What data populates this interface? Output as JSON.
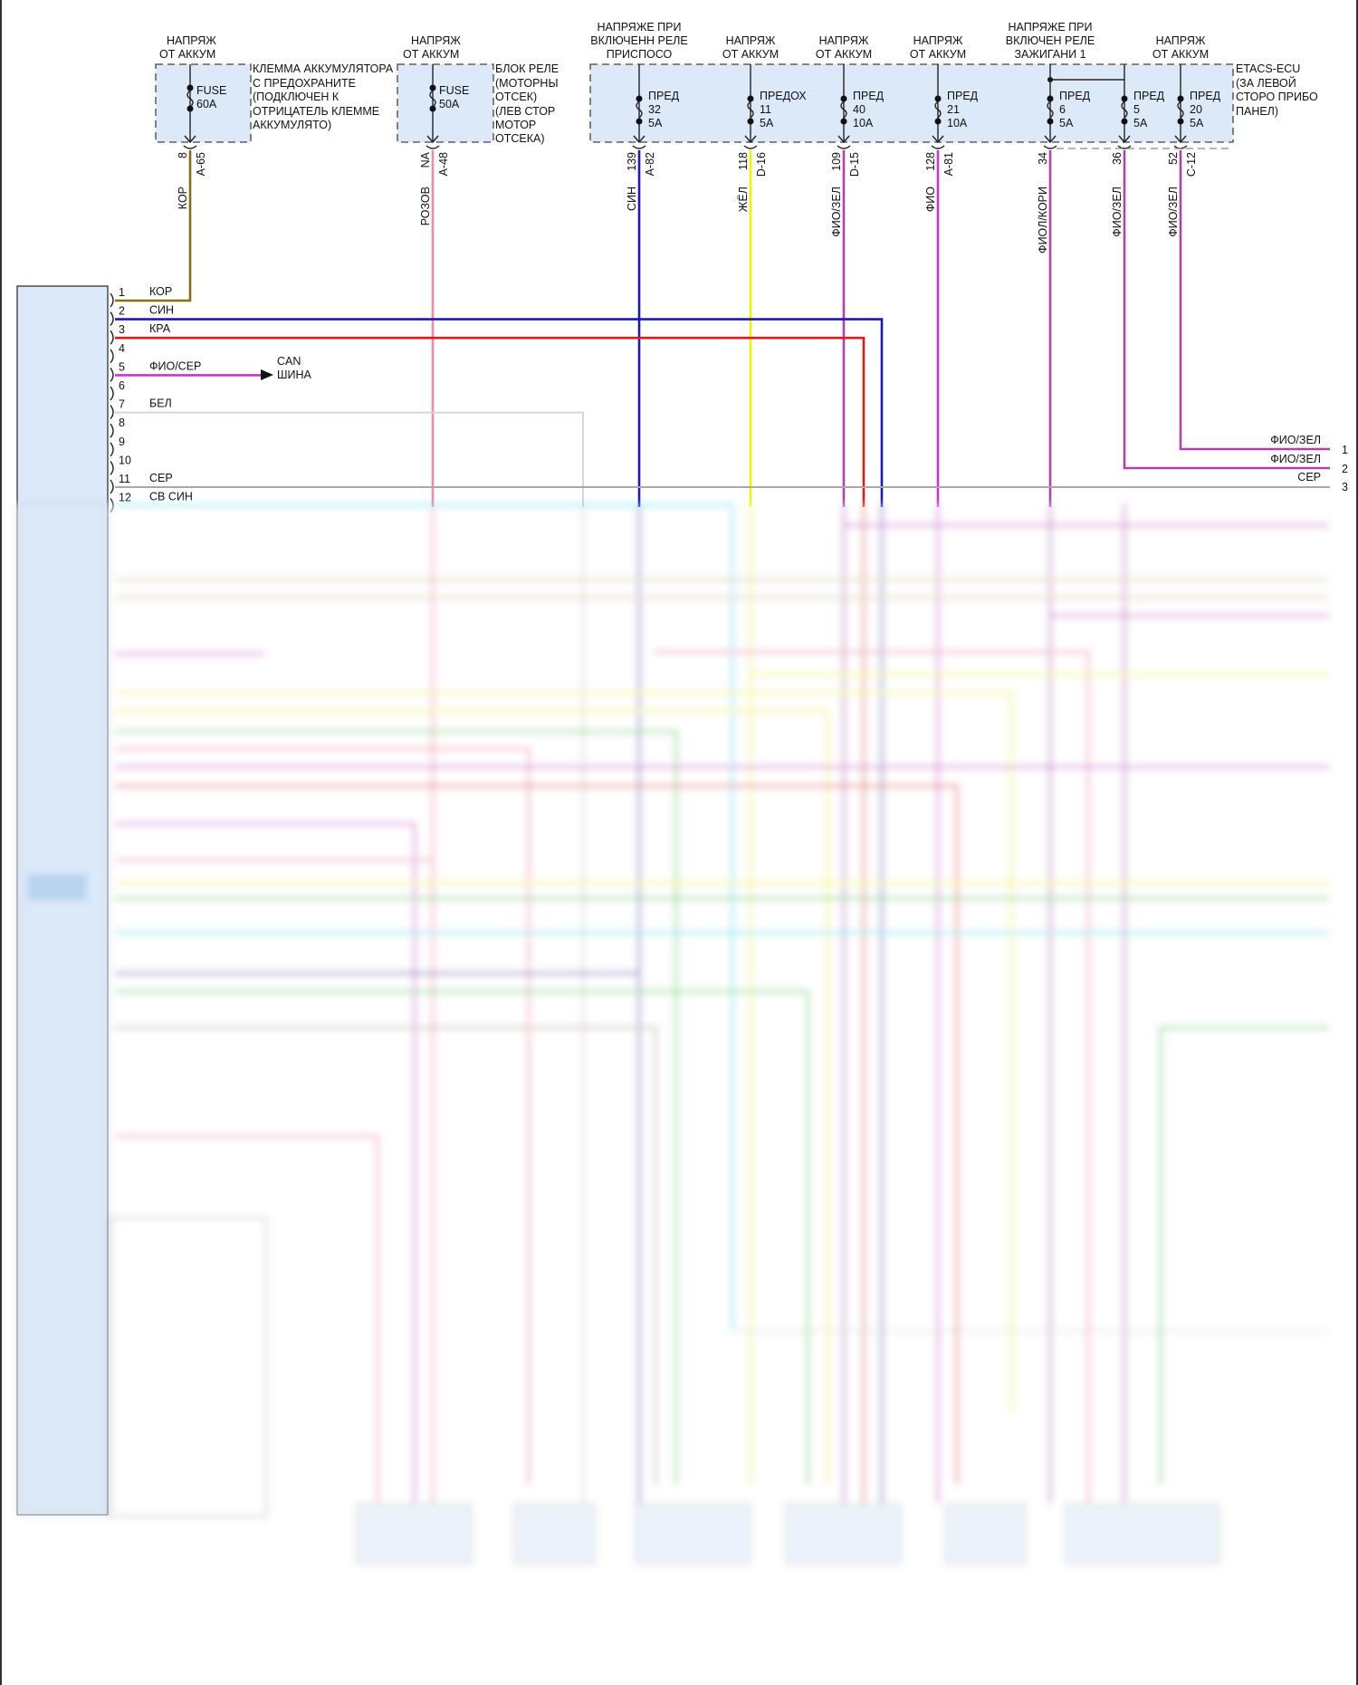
{
  "colors": {
    "module_fill": "#dbe9f8",
    "KOR": "#8a6d12",
    "ROZOV": "#f08aa8",
    "SIN": "#1a1ab8",
    "ZHEL": "#f2f200",
    "FIO_ZEL": "#b040b0",
    "FIO": "#d030d0",
    "KRA": "#e01818",
    "BEL": "#d6d6d6",
    "SER": "#a8a8a8",
    "CYAN": "#40e0f0",
    "GREEN": "#50d050"
  },
  "fuse_blocks": [
    {
      "supply": [
        "НАПРЯЖ",
        "ОТ АККУМ"
      ],
      "fuse": [
        "FUSE",
        "60A"
      ],
      "desc": [
        "КЛЕММА АККУМУЛЯТОРА",
        "С ПРЕДОХРАНИТЕ",
        "(ПОДКЛЮЧЕН К",
        "ОТРИЦАТЕЛЬ КЛЕММЕ",
        "АККУМУЛЯТО)"
      ],
      "pin": "8",
      "conn": "A-65",
      "wire": "КОР"
    },
    {
      "supply": [
        "НАПРЯЖ",
        "ОТ АККУМ"
      ],
      "fuse": [
        "FUSE",
        "50A"
      ],
      "desc": [
        "БЛОК РЕЛЕ",
        "(МОТОРНЫ",
        "ОТСЕК)",
        "(ЛЕВ СТОР",
        "МОТОР",
        "ОТСЕКА)"
      ],
      "pin": "NA",
      "conn": "A-48",
      "wire": "РОЗОВ"
    }
  ],
  "etacs": {
    "desc": [
      "ETACS-ECU",
      "(ЗА ЛЕВОЙ",
      "СТОРО ПРИБО",
      "ПАНЕЛ)"
    ],
    "supplies": [
      [
        "НАПРЯЖЕ ПРИ",
        "ВКЛЮЧЕНН РЕЛЕ",
        "ПРИСПОСО"
      ],
      [
        "НАПРЯЖ",
        "ОТ АККУМ"
      ],
      [
        "НАПРЯЖ",
        "ОТ АККУМ"
      ],
      [
        "НАПРЯЖ",
        "ОТ АККУМ"
      ],
      [
        "НАПРЯЖЕ ПРИ",
        "ВКЛЮЧЕН РЕЛЕ",
        "ЗАЖИГАНИ 1"
      ],
      [
        "НАПРЯЖ",
        "ОТ АККУМ"
      ]
    ],
    "fuses": [
      {
        "label": [
          "ПРЕД",
          "32",
          "5A"
        ],
        "pin": "139",
        "conn": "A-82",
        "wire": "СИН"
      },
      {
        "label": [
          "ПРЕДОХ",
          "11",
          "5A"
        ],
        "pin": "118",
        "conn": "D-16",
        "wire": "ЖЁЛ"
      },
      {
        "label": [
          "ПРЕД",
          "40",
          "10A"
        ],
        "pin": "109",
        "conn": "D-15",
        "wire": "ФИО/ЗЕЛ"
      },
      {
        "label": [
          "ПРЕД",
          "21",
          "10A"
        ],
        "pin": "128",
        "conn": "A-81",
        "wire": "ФИО"
      },
      {
        "label": [
          "ПРЕД",
          "6",
          "5A"
        ],
        "pin": "34",
        "conn": "",
        "wire": "ФИОЛ/КОРИ"
      },
      {
        "label": [
          "ПРЕД",
          "5",
          "5A"
        ],
        "pin": "36",
        "conn": "",
        "wire": "ФИО/ЗЕЛ"
      },
      {
        "label": [
          "ПРЕД",
          "20",
          "5A"
        ],
        "pin": "52",
        "conn": "C-12",
        "wire": "ФИО/ЗЕЛ"
      }
    ]
  },
  "left_connector": {
    "pins": [
      {
        "n": "1",
        "wire": "КОР"
      },
      {
        "n": "2",
        "wire": "СИН"
      },
      {
        "n": "3",
        "wire": "КРА"
      },
      {
        "n": "4",
        "wire": ""
      },
      {
        "n": "5",
        "wire": "ФИО/СЕР"
      },
      {
        "n": "6",
        "wire": ""
      },
      {
        "n": "7",
        "wire": "БЕЛ"
      },
      {
        "n": "8",
        "wire": ""
      },
      {
        "n": "9",
        "wire": ""
      },
      {
        "n": "10",
        "wire": ""
      },
      {
        "n": "11",
        "wire": "СЕР"
      },
      {
        "n": "12",
        "wire": "СВ СИН"
      }
    ],
    "can_label": [
      "CAN",
      "ШИНА"
    ]
  },
  "right_connector": {
    "pins": [
      {
        "n": "1",
        "wire": "ФИО/ЗЕЛ"
      },
      {
        "n": "2",
        "wire": "ФИО/ЗЕЛ"
      },
      {
        "n": "3",
        "wire": "СЕР"
      }
    ]
  }
}
